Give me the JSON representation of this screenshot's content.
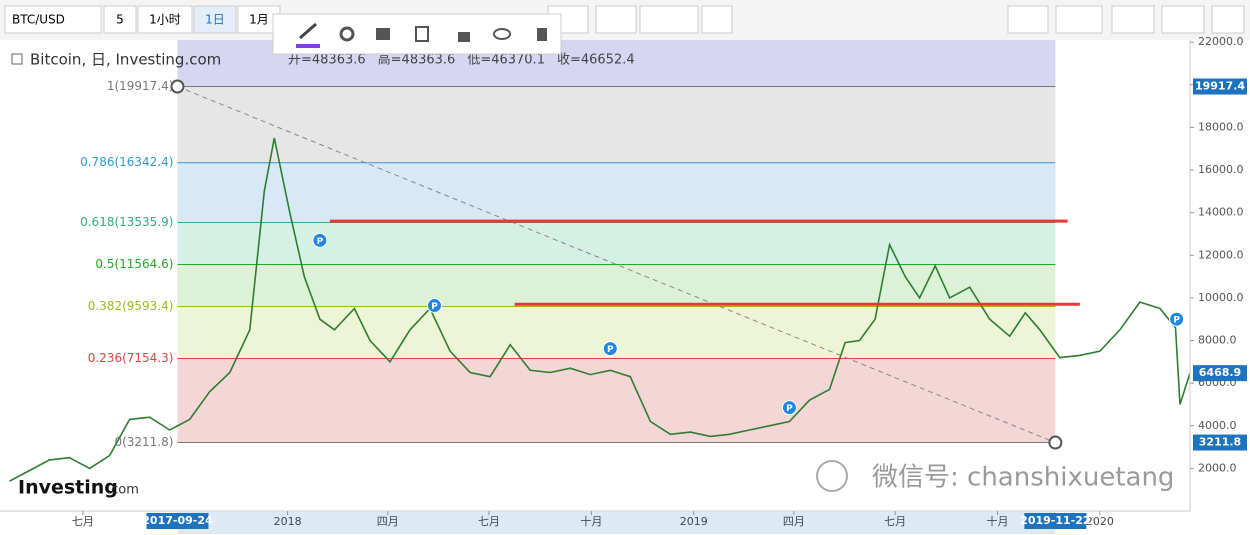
{
  "toolbar": {
    "symbol": "BTC/USD",
    "number": "5",
    "intervals": [
      "1小时",
      "1日",
      "1月"
    ]
  },
  "chart_data": {
    "type": "line",
    "title": "Bitcoin, 日, Investing.com",
    "ohlc": [
      "开=48363.6",
      "高=48363.6",
      "低=46370.1",
      "收=46652.4"
    ],
    "x": [
      "2017-04-26",
      "2017-05-14",
      "2017-06-01",
      "2017-06-19",
      "2017-07-07",
      "2017-07-25",
      "2017-08-12",
      "2017-08-30",
      "2017-09-17",
      "2017-10-05",
      "2017-10-23",
      "2017-11-10",
      "2017-11-28",
      "2017-12-11",
      "2017-12-20",
      "2018-01-03",
      "2018-01-16",
      "2018-01-30",
      "2018-02-12",
      "2018-03-02",
      "2018-03-16",
      "2018-04-03",
      "2018-04-21",
      "2018-05-09",
      "2018-05-27",
      "2018-06-14",
      "2018-07-02",
      "2018-07-20",
      "2018-08-07",
      "2018-08-25",
      "2018-09-12",
      "2018-09-30",
      "2018-10-18",
      "2018-11-05",
      "2018-11-23",
      "2018-12-11",
      "2018-12-29",
      "2019-01-16",
      "2019-02-02",
      "2019-02-20",
      "2019-03-10",
      "2019-03-28",
      "2019-04-15",
      "2019-05-03",
      "2019-05-17",
      "2019-05-30",
      "2019-06-13",
      "2019-06-26",
      "2019-07-10",
      "2019-07-23",
      "2019-08-06",
      "2019-08-19",
      "2019-09-06",
      "2019-09-24",
      "2019-10-12",
      "2019-10-26",
      "2019-11-08",
      "2019-11-26",
      "2019-12-14",
      "2020-01-01",
      "2020-01-19",
      "2020-02-06",
      "2020-02-24",
      "2020-03-09",
      "2020-03-13",
      "2020-03-22"
    ],
    "series": [
      {
        "color": "#2e7d32",
        "values": [
          1400,
          1900,
          2400,
          2500,
          2000,
          2600,
          4300,
          4400,
          3800,
          4300,
          5600,
          6500,
          8500,
          15000,
          17500,
          14000,
          11000,
          9000,
          8500,
          9500,
          8000,
          7000,
          8500,
          9500,
          7500,
          6500,
          6300,
          7800,
          6600,
          6500,
          6700,
          6400,
          6600,
          6300,
          4200,
          3600,
          3700,
          3500,
          3600,
          3800,
          4000,
          4200,
          5200,
          5700,
          7900,
          8000,
          9000,
          12500,
          11000,
          10000,
          11500,
          10000,
          10500,
          9000,
          8200,
          9300,
          8500,
          7200,
          7300,
          7500,
          8500,
          9800,
          9500,
          8600,
          5000,
          6468.9
        ]
      }
    ],
    "xlim": [
      "2017-04-22",
      "2020-03-22"
    ],
    "xticks": [
      {
        "value": "2017-07-01",
        "label": "七月"
      },
      {
        "value": "2018-01-01",
        "label": "2018"
      },
      {
        "value": "2018-04-01",
        "label": "四月"
      },
      {
        "value": "2018-07-01",
        "label": "七月"
      },
      {
        "value": "2018-10-01",
        "label": "十月"
      },
      {
        "value": "2019-01-01",
        "label": "2019"
      },
      {
        "value": "2019-04-01",
        "label": "四月"
      },
      {
        "value": "2019-07-01",
        "label": "七月"
      },
      {
        "value": "2019-10-01",
        "label": "十月"
      },
      {
        "value": "2020-01-01",
        "label": "2020"
      }
    ],
    "ylim": [
      0,
      22100
    ],
    "yticks": [
      {
        "value": 2000,
        "label": "2000.0"
      },
      {
        "value": 4000,
        "label": "4000.0"
      },
      {
        "value": 6000,
        "label": "6000.0"
      },
      {
        "value": 8000,
        "label": "8000.0"
      },
      {
        "value": 10000,
        "label": "10000.0"
      },
      {
        "value": 12000,
        "label": "12000.0"
      },
      {
        "value": 14000,
        "label": "14000.0"
      },
      {
        "value": 16000,
        "label": "16000.0"
      },
      {
        "value": 18000,
        "label": "18000.0"
      },
      {
        "value": 20000,
        "label": "20000.0"
      },
      {
        "value": 22000,
        "label": "22000.0"
      }
    ],
    "fib": {
      "start": "2017-09-24",
      "end": "2019-11-22",
      "extension_color": "#d6d6f2",
      "levels": [
        {
          "label": "1(19917.4)",
          "value": 19917.4,
          "color": "#777777",
          "fill": "#e6e6e6"
        },
        {
          "label": "0.786(16342.4)",
          "value": 16342.4,
          "color": "#3399cc",
          "fill": "#d7e9f6"
        },
        {
          "label": "0.618(13535.9)",
          "value": 13535.9,
          "color": "#33aa88",
          "fill": "#d5f1e6"
        },
        {
          "label": "0.5(11564.6)",
          "value": 11564.6,
          "color": "#22aa22",
          "fill": "#dcf2d6"
        },
        {
          "label": "0.382(9593.4)",
          "value": 9593.4,
          "color": "#99bb22",
          "fill": "#eef5d6"
        },
        {
          "label": "0.236(7154.3)",
          "value": 7154.3,
          "color": "#dd4444",
          "fill": "#f4d6d6"
        },
        {
          "label": "0(3211.8)",
          "value": 3211.8,
          "color": "#777777"
        }
      ]
    },
    "x_markers": [
      "2017-09-24",
      "2019-11-22"
    ],
    "price_tags": [
      19917.4,
      6468.9,
      3211.8
    ],
    "trend_lines": [
      {
        "start": "2018-02-08",
        "end": "2019-12-03",
        "value": 13600,
        "color": "#e53935"
      },
      {
        "start": "2018-07-24",
        "end": "2019-12-14",
        "value": 9700,
        "color": "#e53935"
      }
    ],
    "events": [
      {
        "label": "P",
        "x": "2018-01-30",
        "value": 12700
      },
      {
        "label": "P",
        "x": "2018-05-13",
        "value": 9640
      },
      {
        "label": "P",
        "x": "2018-10-18",
        "value": 7620
      },
      {
        "label": "P",
        "x": "2019-03-28",
        "value": 4850
      },
      {
        "label": "P",
        "x": "2020-03-10",
        "value": 9000
      }
    ],
    "grid": false
  },
  "watermark": "微信号: chanshixuetang",
  "logo": [
    "Investing",
    ".com"
  ]
}
